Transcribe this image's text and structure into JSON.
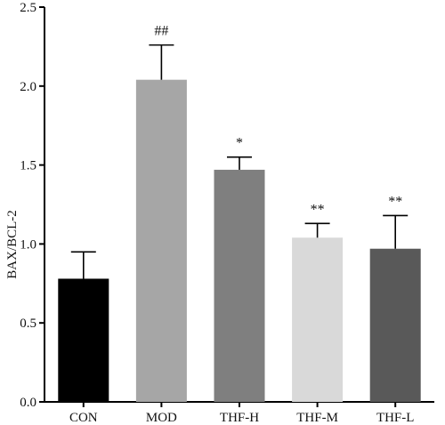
{
  "chart_data": {
    "type": "bar",
    "title": "",
    "xlabel": "",
    "ylabel": "BAX/BCL-2",
    "ylim": [
      0,
      2.5
    ],
    "yticks": [
      "0.0",
      "0.5",
      "1.0",
      "1.5",
      "2.0",
      "2.5"
    ],
    "grid": false,
    "categories": [
      "CON",
      "MOD",
      "THF-H",
      "THF-M",
      "THF-L"
    ],
    "values": [
      0.78,
      2.04,
      1.47,
      1.04,
      0.97
    ],
    "error_upper": [
      0.17,
      0.22,
      0.08,
      0.09,
      0.21
    ],
    "annotations": [
      "",
      "##",
      "*",
      "**",
      "**"
    ],
    "colors": [
      "#000000",
      "#a6a6a6",
      "#7f7f7f",
      "#d9d9d9",
      "#595959"
    ]
  }
}
